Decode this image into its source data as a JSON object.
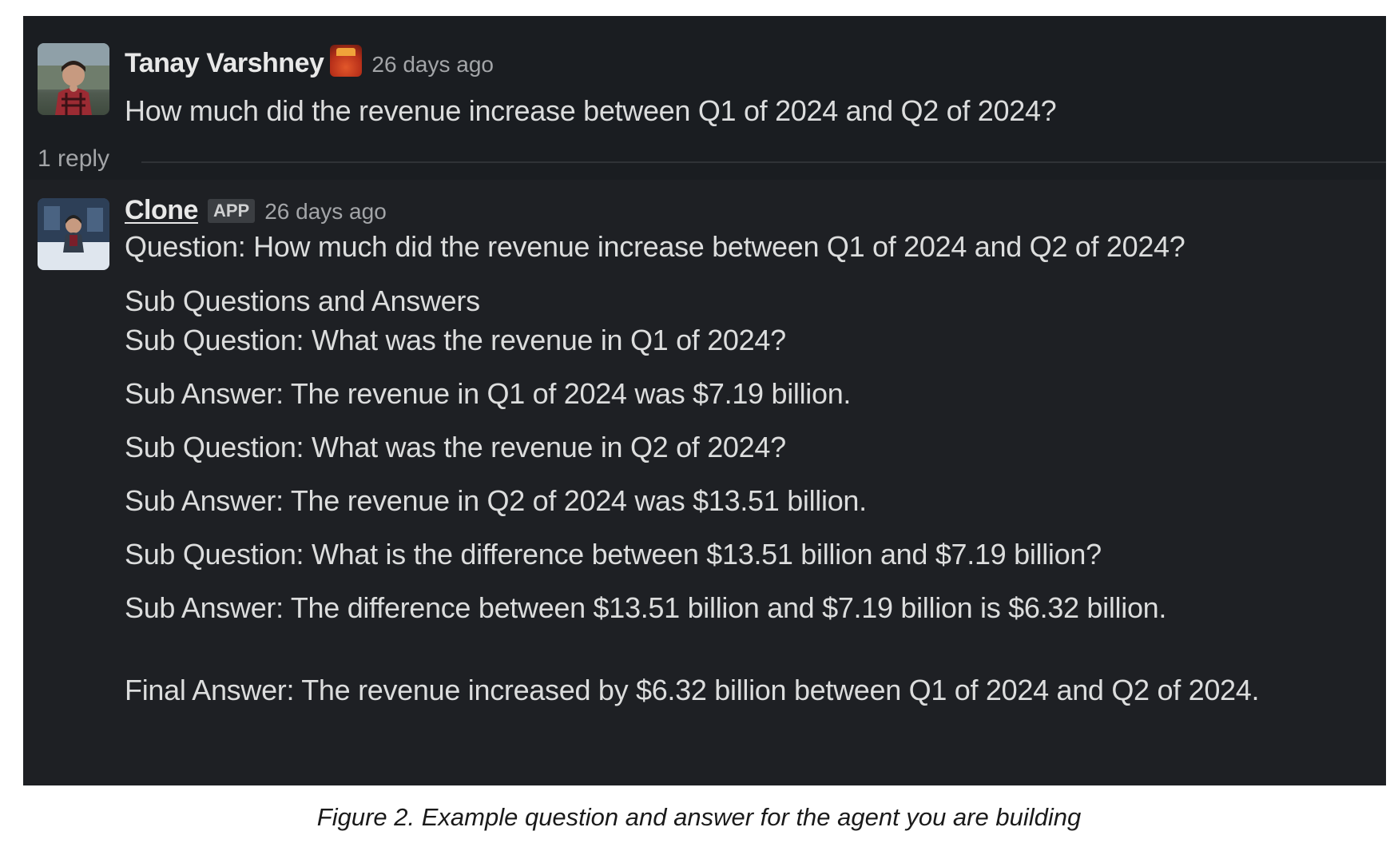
{
  "thread": {
    "question_message": {
      "author": "Tanay Varshney",
      "emoji": "fire-emoji",
      "timestamp": "26 days ago",
      "text": "How much did the revenue increase between Q1 of 2024 and Q2 of 2024?"
    },
    "reply_count": "1 reply",
    "reply_message": {
      "author": "Clone",
      "badge": "APP",
      "timestamp": "26 days ago",
      "lines": [
        "Question: How much did the revenue increase between Q1 of 2024 and Q2 of 2024?",
        "Sub Questions and Answers",
        "Sub Question: What was the revenue in Q1 of 2024?",
        "Sub Answer: The revenue in Q1 of 2024 was $7.19 billion.",
        "Sub Question: What was the revenue in Q2 of 2024?",
        "Sub Answer: The revenue in Q2 of 2024 was $13.51 billion.",
        "Sub Question: What is the difference between $13.51 billion and $7.19 billion?",
        "Sub Answer: The difference between $13.51 billion and $7.19 billion is $6.32 billion.",
        "Final Answer: The revenue increased by $6.32 billion between Q1 of 2024 and Q2 of 2024."
      ]
    }
  },
  "caption": "Figure 2. Example question and answer for the agent you are building",
  "colors": {
    "panel_background": "#1a1d21",
    "reply_background": "#1e2024",
    "text": "#dcdddd",
    "muted_text": "#a3a5a8"
  }
}
